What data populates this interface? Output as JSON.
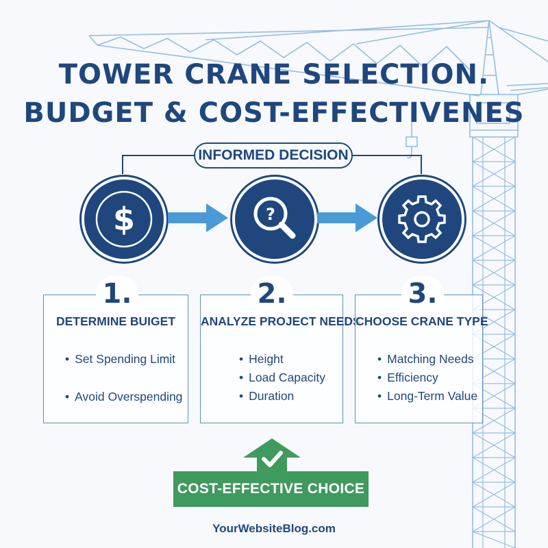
{
  "title_line1": "TOWER CRANE SELECTION.",
  "title_line2": "BUDGET & COST-EFFECTIVENES",
  "decision_label": "INFORMED DECISION",
  "steps": [
    {
      "number": "1.",
      "icon": "dollar-icon",
      "title": "DETERMINE BUIGET",
      "bullets": [
        "Set Spending Limit",
        "Avoid Overspending"
      ]
    },
    {
      "number": "2.",
      "icon": "magnifier-question-icon",
      "title": "ANALYZE PROJECT NEEDS",
      "bullets": [
        "Height",
        "Load Capacity",
        "Duration"
      ]
    },
    {
      "number": "3.",
      "icon": "gear-icon",
      "title": "CHOOSE CRANE TYPE",
      "bullets": [
        "Matching Needs",
        "Efficiency",
        "Long-Term Value"
      ]
    }
  ],
  "result_label": "COST-EFFECTIVE CHOICE",
  "result_icon": "checkmark-icon",
  "footer": "YourWebsiteBlog.com",
  "colors": {
    "navy": "#1f477e",
    "arrow_blue": "#4a9ad8",
    "green": "#3f9a5d",
    "crane_blue": "#8ab6e3"
  }
}
